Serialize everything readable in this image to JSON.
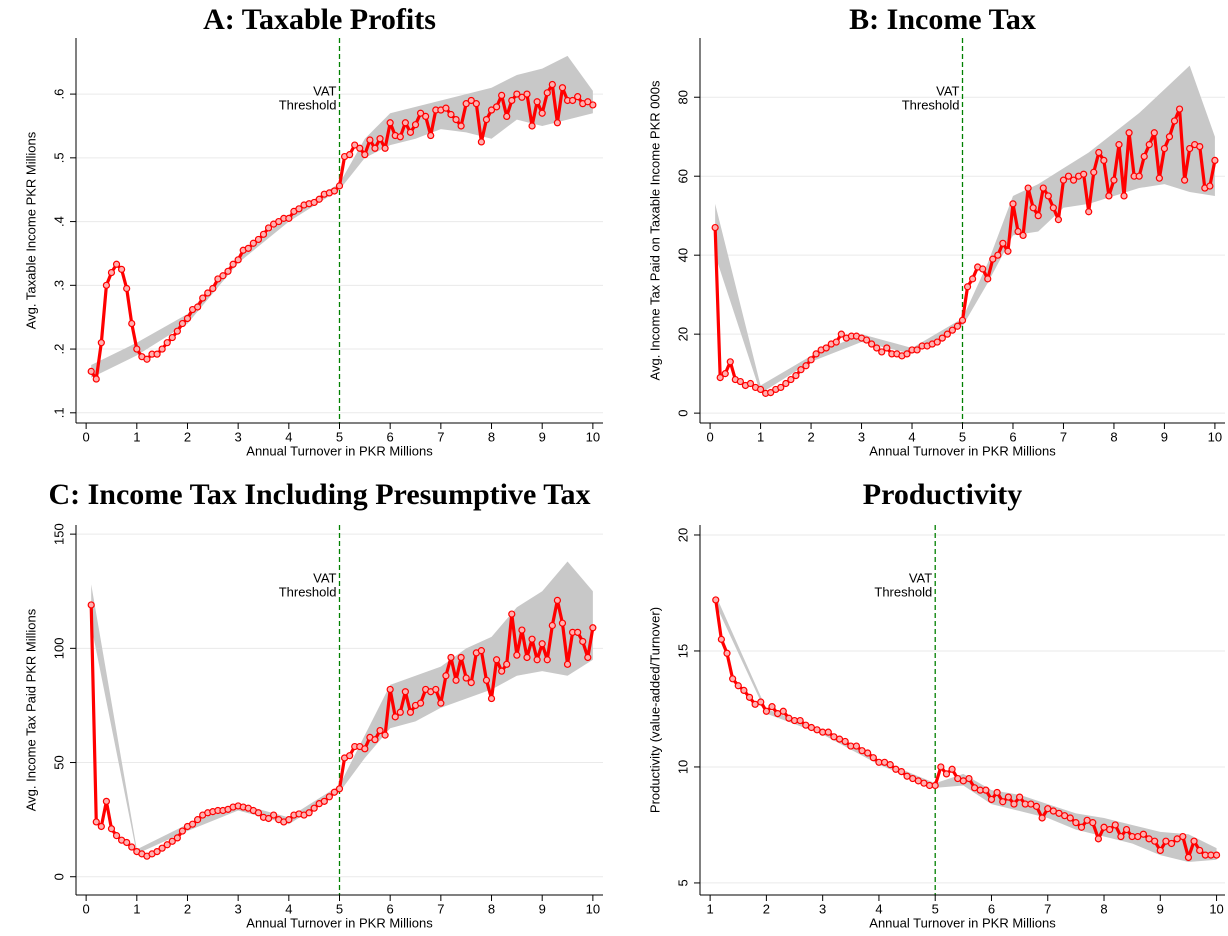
{
  "chart_data": [
    {
      "type": "line",
      "title": "A: Taxable Profits",
      "x_label": "Annual Turnover in PKR Millions",
      "y_label": "Avg. Taxable Income PKR Millions",
      "color": "#ff0000",
      "x": [
        0.1,
        0.2,
        0.3,
        0.4,
        0.5,
        0.6,
        0.7,
        0.8,
        0.9,
        1.0,
        1.1,
        1.2,
        1.3,
        1.4,
        1.5,
        1.6,
        1.7,
        1.8,
        1.9,
        2.0,
        2.1,
        2.2,
        2.3,
        2.4,
        2.5,
        2.6,
        2.7,
        2.8,
        2.9,
        3.0,
        3.1,
        3.2,
        3.3,
        3.4,
        3.5,
        3.6,
        3.7,
        3.8,
        3.9,
        4.0,
        4.1,
        4.2,
        4.3,
        4.4,
        4.5,
        4.6,
        4.7,
        4.8,
        4.9,
        5.0,
        5.1,
        5.2,
        5.3,
        5.4,
        5.5,
        5.6,
        5.7,
        5.8,
        5.9,
        6.0,
        6.1,
        6.2,
        6.3,
        6.4,
        6.5,
        6.6,
        6.7,
        6.8,
        6.9,
        7.0,
        7.1,
        7.2,
        7.3,
        7.4,
        7.5,
        7.6,
        7.7,
        7.8,
        7.9,
        8.0,
        8.1,
        8.2,
        8.3,
        8.4,
        8.5,
        8.6,
        8.7,
        8.8,
        8.9,
        9.0,
        9.1,
        9.2,
        9.3,
        9.4,
        9.5,
        9.6,
        9.7,
        9.8,
        9.9,
        10.0
      ],
      "values": [
        0.165,
        0.153,
        0.21,
        0.3,
        0.32,
        0.333,
        0.325,
        0.295,
        0.24,
        0.2,
        0.188,
        0.184,
        0.192,
        0.192,
        0.2,
        0.21,
        0.218,
        0.228,
        0.24,
        0.248,
        0.262,
        0.266,
        0.28,
        0.288,
        0.295,
        0.31,
        0.315,
        0.322,
        0.333,
        0.34,
        0.355,
        0.358,
        0.366,
        0.372,
        0.38,
        0.39,
        0.396,
        0.4,
        0.405,
        0.405,
        0.416,
        0.42,
        0.426,
        0.428,
        0.43,
        0.435,
        0.443,
        0.445,
        0.448,
        0.456,
        0.502,
        0.505,
        0.52,
        0.515,
        0.505,
        0.528,
        0.515,
        0.53,
        0.515,
        0.555,
        0.535,
        0.533,
        0.555,
        0.54,
        0.552,
        0.57,
        0.565,
        0.535,
        0.575,
        0.575,
        0.578,
        0.568,
        0.56,
        0.55,
        0.585,
        0.59,
        0.585,
        0.525,
        0.56,
        0.575,
        0.58,
        0.598,
        0.565,
        0.59,
        0.6,
        0.595,
        0.6,
        0.55,
        0.588,
        0.57,
        0.602,
        0.615,
        0.555,
        0.61,
        0.59,
        0.59,
        0.596,
        0.585,
        0.588,
        0.583
      ],
      "band": {
        "color": "#c8c8c8",
        "x": [
          0.1,
          1,
          2,
          3,
          4,
          5,
          5.5,
          6,
          6.5,
          7,
          7.5,
          8,
          8.5,
          9,
          9.5,
          10
        ],
        "lower": [
          0.155,
          0.19,
          0.24,
          0.335,
          0.4,
          0.45,
          0.5,
          0.52,
          0.53,
          0.545,
          0.54,
          0.53,
          0.56,
          0.55,
          0.56,
          0.57
        ],
        "upper": [
          0.175,
          0.21,
          0.255,
          0.345,
          0.41,
          0.46,
          0.53,
          0.57,
          0.58,
          0.59,
          0.6,
          0.61,
          0.63,
          0.64,
          0.66,
          0.605
        ]
      },
      "threshold": {
        "x": 5,
        "label": [
          "VAT",
          "Threshold"
        ],
        "color": "#008000"
      },
      "xlim": [
        -0.2,
        10.2
      ],
      "ylim": [
        0.084,
        0.688
      ],
      "xticks": [
        0,
        1,
        2,
        3,
        4,
        5,
        6,
        7,
        8,
        9,
        10
      ],
      "yticks": [
        {
          "value": 0.1,
          "label": ".1"
        },
        {
          "value": 0.2,
          "label": ".2"
        },
        {
          "value": 0.3,
          "label": ".3"
        },
        {
          "value": 0.4,
          "label": ".4"
        },
        {
          "value": 0.5,
          "label": ".5"
        },
        {
          "value": 0.6,
          "label": ".6"
        }
      ],
      "grid": true
    },
    {
      "type": "line",
      "title": "B: Income Tax",
      "x_label": "Annual Turnover in PKR Millions",
      "y_label": "Avg. Income Tax Paid on Taxable Income PKR 000s",
      "color": "#ff0000",
      "x": [
        0.1,
        0.2,
        0.3,
        0.4,
        0.5,
        0.6,
        0.7,
        0.8,
        0.9,
        1.0,
        1.1,
        1.2,
        1.3,
        1.4,
        1.5,
        1.6,
        1.7,
        1.8,
        1.9,
        2.0,
        2.1,
        2.2,
        2.3,
        2.4,
        2.5,
        2.6,
        2.7,
        2.8,
        2.9,
        3.0,
        3.1,
        3.2,
        3.3,
        3.4,
        3.5,
        3.6,
        3.7,
        3.8,
        3.9,
        4.0,
        4.1,
        4.2,
        4.3,
        4.4,
        4.5,
        4.6,
        4.7,
        4.8,
        4.9,
        5.0,
        5.1,
        5.2,
        5.3,
        5.4,
        5.5,
        5.6,
        5.7,
        5.8,
        5.9,
        6.0,
        6.1,
        6.2,
        6.3,
        6.4,
        6.5,
        6.6,
        6.7,
        6.8,
        6.9,
        7.0,
        7.1,
        7.2,
        7.3,
        7.4,
        7.5,
        7.6,
        7.7,
        7.8,
        7.9,
        8.0,
        8.1,
        8.2,
        8.3,
        8.4,
        8.5,
        8.6,
        8.7,
        8.8,
        8.9,
        9.0,
        9.1,
        9.2,
        9.3,
        9.4,
        9.5,
        9.6,
        9.7,
        9.8,
        9.9,
        10.0
      ],
      "values": [
        47,
        9,
        10,
        13,
        8.5,
        8,
        7,
        7.5,
        6.5,
        6,
        5,
        5.2,
        6,
        6.5,
        7.5,
        8.5,
        9.5,
        11,
        12,
        13.5,
        15,
        16,
        16.5,
        17.5,
        18,
        20,
        19,
        19.5,
        19.5,
        19,
        18.5,
        17.5,
        16.5,
        15.5,
        16.5,
        15,
        15,
        14.5,
        15,
        16,
        16,
        17,
        17,
        17.5,
        18,
        19,
        20,
        21,
        22,
        23.5,
        32,
        34,
        37,
        36.5,
        34,
        39,
        40,
        43,
        41,
        53,
        46,
        45,
        57,
        52,
        50,
        57,
        55,
        52,
        49,
        59,
        60,
        59,
        60,
        60.5,
        51,
        61,
        66,
        64,
        55,
        59,
        68,
        55,
        71,
        60,
        60,
        65,
        68,
        71,
        59.5,
        67,
        70,
        74,
        77,
        59,
        67,
        68,
        67.5,
        57,
        57.5,
        64
      ],
      "band": {
        "color": "#c8c8c8",
        "x": [
          0.1,
          1,
          2,
          3,
          4,
          5,
          5.5,
          6,
          6.5,
          7,
          7.5,
          8,
          8.5,
          9,
          9.5,
          10
        ],
        "lower": [
          40,
          5,
          13,
          18,
          15,
          22,
          33,
          45,
          46,
          52,
          53,
          55,
          57,
          58,
          56,
          55
        ],
        "upper": [
          53,
          7,
          14.5,
          20,
          16.5,
          24,
          38,
          55,
          58,
          62,
          66,
          71,
          76,
          82,
          88,
          70
        ]
      },
      "threshold": {
        "x": 5,
        "label": [
          "VAT",
          "Threshold"
        ],
        "color": "#008000"
      },
      "xlim": [
        -0.2,
        10.2
      ],
      "ylim": [
        -2.5,
        95
      ],
      "xticks": [
        0,
        1,
        2,
        3,
        4,
        5,
        6,
        7,
        8,
        9,
        10
      ],
      "yticks": [
        0,
        20,
        40,
        60,
        80
      ],
      "grid": true
    },
    {
      "type": "line",
      "title": "C: Income Tax Including Presumptive Tax",
      "x_label": "Annual Turnover in PKR Millions",
      "y_label": "Avg. Income Tax Paid PKR Millions",
      "color": "#ff0000",
      "x": [
        0.1,
        0.2,
        0.3,
        0.4,
        0.5,
        0.6,
        0.7,
        0.8,
        0.9,
        1.0,
        1.1,
        1.2,
        1.3,
        1.4,
        1.5,
        1.6,
        1.7,
        1.8,
        1.9,
        2.0,
        2.1,
        2.2,
        2.3,
        2.4,
        2.5,
        2.6,
        2.7,
        2.8,
        2.9,
        3.0,
        3.1,
        3.2,
        3.3,
        3.4,
        3.5,
        3.6,
        3.7,
        3.8,
        3.9,
        4.0,
        4.1,
        4.2,
        4.3,
        4.4,
        4.5,
        4.6,
        4.7,
        4.8,
        4.9,
        5.0,
        5.1,
        5.2,
        5.3,
        5.4,
        5.5,
        5.6,
        5.7,
        5.8,
        5.9,
        6.0,
        6.1,
        6.2,
        6.3,
        6.4,
        6.5,
        6.6,
        6.7,
        6.8,
        6.9,
        7.0,
        7.1,
        7.2,
        7.3,
        7.4,
        7.5,
        7.6,
        7.7,
        7.8,
        7.9,
        8.0,
        8.1,
        8.2,
        8.3,
        8.4,
        8.5,
        8.6,
        8.7,
        8.8,
        8.9,
        9.0,
        9.1,
        9.2,
        9.3,
        9.4,
        9.5,
        9.6,
        9.7,
        9.8,
        9.9,
        10.0
      ],
      "values": [
        119,
        24,
        22,
        33,
        21,
        18,
        16,
        15,
        13,
        11,
        10,
        9,
        10,
        11,
        12.5,
        14,
        15.5,
        17,
        20,
        22,
        23,
        25,
        27,
        28,
        28.5,
        29,
        29,
        29.5,
        30.5,
        31,
        30.5,
        30,
        29,
        28,
        26,
        25.5,
        27,
        25,
        24,
        25,
        27,
        27.5,
        27,
        28,
        30,
        32,
        33,
        35,
        37,
        38.5,
        52,
        53,
        57,
        57,
        56,
        61,
        60,
        64,
        62,
        82,
        70,
        72,
        81,
        72,
        75,
        76,
        82,
        81,
        82,
        76,
        88,
        96,
        86,
        96,
        87,
        85,
        98,
        99,
        86,
        78,
        95,
        90,
        93,
        115,
        97,
        108,
        96,
        104,
        95,
        102,
        95,
        110,
        121,
        111,
        93,
        107,
        107,
        103,
        96,
        109
      ],
      "band": {
        "color": "#c8c8c8",
        "x": [
          0.1,
          1,
          2,
          3,
          4,
          5,
          5.5,
          6,
          6.5,
          7,
          7.5,
          8,
          8.5,
          9,
          9.5,
          10
        ],
        "lower": [
          110,
          10,
          20,
          29,
          23,
          37,
          52,
          65,
          68,
          74,
          78,
          82,
          88,
          90,
          88,
          95
        ],
        "upper": [
          128,
          12,
          23,
          32,
          26,
          40,
          62,
          84,
          88,
          92,
          100,
          105,
          118,
          125,
          138,
          125
        ]
      },
      "threshold": {
        "x": 5,
        "label": [
          "VAT",
          "Threshold"
        ],
        "color": "#008000"
      },
      "xlim": [
        -0.2,
        10.2
      ],
      "ylim": [
        -8,
        154
      ],
      "xticks": [
        0,
        1,
        2,
        3,
        4,
        5,
        6,
        7,
        8,
        9,
        10
      ],
      "yticks": [
        0,
        50,
        100,
        150
      ],
      "grid": true
    },
    {
      "type": "line",
      "title": "Productivity",
      "x_label": "Annual Turnover in PKR Millions",
      "y_label": "Productivity (value-added/Turnover)",
      "color": "#ff0000",
      "x": [
        1.1,
        1.2,
        1.3,
        1.4,
        1.5,
        1.6,
        1.7,
        1.8,
        1.9,
        2.0,
        2.1,
        2.2,
        2.3,
        2.4,
        2.5,
        2.6,
        2.7,
        2.8,
        2.9,
        3.0,
        3.1,
        3.2,
        3.3,
        3.4,
        3.5,
        3.6,
        3.7,
        3.8,
        3.9,
        4.0,
        4.1,
        4.2,
        4.3,
        4.4,
        4.5,
        4.6,
        4.7,
        4.8,
        4.9,
        5.0,
        5.1,
        5.2,
        5.3,
        5.4,
        5.5,
        5.6,
        5.7,
        5.8,
        5.9,
        6.0,
        6.1,
        6.2,
        6.3,
        6.4,
        6.5,
        6.6,
        6.7,
        6.8,
        6.9,
        7.0,
        7.1,
        7.2,
        7.3,
        7.4,
        7.5,
        7.6,
        7.7,
        7.8,
        7.9,
        8.0,
        8.1,
        8.2,
        8.3,
        8.4,
        8.5,
        8.6,
        8.7,
        8.8,
        8.9,
        9.0,
        9.1,
        9.2,
        9.3,
        9.4,
        9.5,
        9.6,
        9.7,
        9.8,
        9.9,
        10.0
      ],
      "values": [
        17.2,
        15.5,
        14.9,
        13.8,
        13.5,
        13.3,
        13.0,
        12.7,
        12.8,
        12.4,
        12.6,
        12.3,
        12.4,
        12.1,
        12.0,
        12.0,
        11.8,
        11.7,
        11.6,
        11.5,
        11.5,
        11.3,
        11.2,
        11.1,
        10.9,
        10.9,
        10.7,
        10.6,
        10.4,
        10.2,
        10.2,
        10.1,
        9.9,
        9.8,
        9.6,
        9.5,
        9.4,
        9.3,
        9.2,
        9.2,
        10.0,
        9.7,
        9.9,
        9.5,
        9.4,
        9.5,
        9.1,
        9.0,
        9.0,
        8.6,
        8.9,
        8.5,
        8.7,
        8.4,
        8.7,
        8.4,
        8.4,
        8.3,
        7.8,
        8.2,
        8.1,
        8.0,
        7.9,
        7.8,
        7.6,
        7.4,
        7.7,
        7.6,
        6.9,
        7.4,
        7.3,
        7.5,
        7.0,
        7.3,
        7.0,
        7.0,
        7.1,
        6.9,
        6.8,
        6.4,
        6.8,
        6.7,
        6.9,
        7.0,
        6.1,
        6.8,
        6.4,
        6.2,
        6.2,
        6.2
      ],
      "band": {
        "color": "#c8c8c8",
        "x": [
          1.1,
          2,
          3,
          4,
          5,
          5.5,
          6,
          6.5,
          7,
          7.5,
          8,
          8.5,
          9,
          9.5,
          10
        ],
        "lower": [
          17.0,
          12.3,
          11.4,
          10.1,
          9.1,
          9.2,
          8.4,
          8.1,
          7.8,
          7.3,
          7.0,
          6.7,
          6.2,
          5.9,
          6.0
        ],
        "upper": [
          17.4,
          12.5,
          11.6,
          10.3,
          9.3,
          9.7,
          9.0,
          8.8,
          8.4,
          8.0,
          7.8,
          7.5,
          7.2,
          7.1,
          6.5
        ]
      },
      "threshold": {
        "x": 5,
        "label": [
          "VAT",
          "Threshold"
        ],
        "color": "#008000"
      },
      "xlim": [
        0.82,
        10.15
      ],
      "ylim": [
        4.48,
        20.43
      ],
      "xticks": [
        1,
        2,
        3,
        4,
        5,
        6,
        7,
        8,
        9,
        10
      ],
      "yticks": [
        5,
        10,
        15,
        20
      ],
      "grid": true
    }
  ]
}
